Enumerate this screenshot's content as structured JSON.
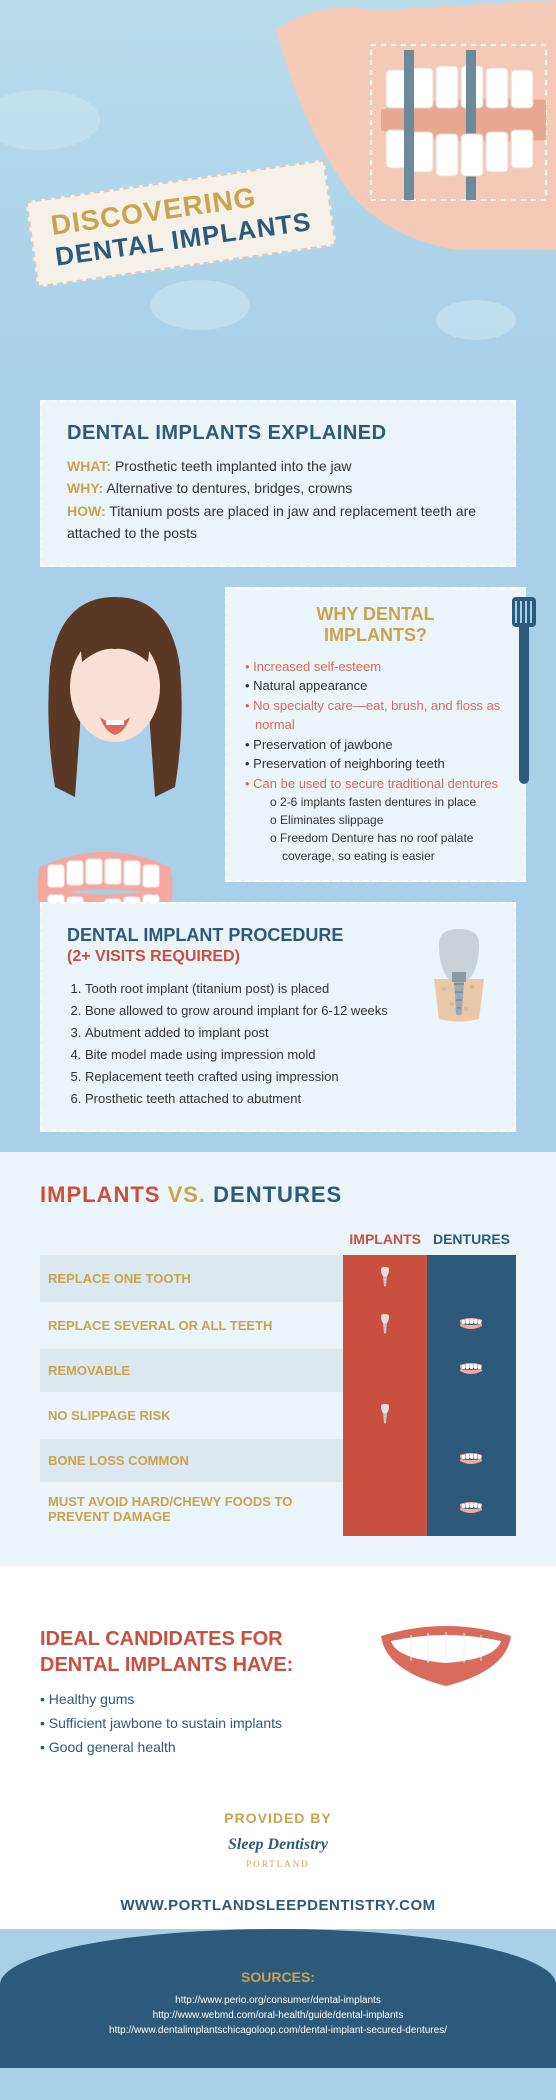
{
  "colors": {
    "gold": "#c9a34e",
    "navy": "#2d5a7a",
    "coral": "#d86b5c",
    "red": "#c94f3e",
    "skin": "#f5c9b8",
    "paleBlue": "#ebf4f9",
    "skyBlue": "#a8d0e8",
    "darkText": "#333"
  },
  "hero": {
    "title1": "DISCOVERING",
    "title2": "DENTAL IMPLANTS"
  },
  "explained": {
    "title": "DENTAL IMPLANTS EXPLAINED",
    "rows": [
      {
        "label": "WHAT:",
        "text": "Prosthetic teeth implanted into the jaw"
      },
      {
        "label": "WHY:",
        "text": "Alternative to dentures, bridges, crowns"
      },
      {
        "label": "HOW:",
        "text": "Titanium posts are placed in jaw and replacement teeth are attached to the posts"
      }
    ]
  },
  "why": {
    "title1": "WHY DENTAL",
    "title2": "IMPLANTS?",
    "items": [
      {
        "text": "Increased self-esteem",
        "color": "#d86b5c"
      },
      {
        "text": "Natural appearance",
        "color": "#333"
      },
      {
        "text": "No specialty care—eat, brush, and floss as normal",
        "color": "#d86b5c"
      },
      {
        "text": "Preservation of jawbone",
        "color": "#333"
      },
      {
        "text": "Preservation of neighboring teeth",
        "color": "#333"
      },
      {
        "text": "Can be used to secure traditional dentures",
        "color": "#d86b5c",
        "sub": [
          "2-6 implants fasten dentures in place",
          "Eliminates slippage",
          "Freedom Denture has no roof palate coverage, so eating is easier"
        ]
      }
    ]
  },
  "procedure": {
    "title": "DENTAL IMPLANT PROCEDURE",
    "subtitle": "(2+ VISITS REQUIRED)",
    "steps": [
      "Tooth root implant (titanium post) is placed",
      "Bone allowed to grow around implant for 6-12 weeks",
      "Abutment added to implant post",
      "Bite model made using impression mold",
      "Replacement teeth crafted using impression",
      "Prosthetic teeth attached to abutment"
    ]
  },
  "comparison": {
    "title1": "IMPLANTS",
    "titleVs": "VS.",
    "title2": "DENTURES",
    "col1": "IMPLANTS",
    "col2": "DENTURES",
    "rows": [
      {
        "label": "REPLACE ONE TOOTH",
        "implant": true,
        "denture": false
      },
      {
        "label": "REPLACE SEVERAL OR ALL TEETH",
        "implant": true,
        "denture": true
      },
      {
        "label": "REMOVABLE",
        "implant": false,
        "denture": true
      },
      {
        "label": "NO SLIPPAGE RISK",
        "implant": true,
        "denture": false
      },
      {
        "label": "BONE LOSS COMMON",
        "implant": false,
        "denture": true
      },
      {
        "label": "MUST AVOID HARD/CHEWY FOODS TO PREVENT DAMAGE",
        "implant": false,
        "denture": true
      }
    ]
  },
  "candidates": {
    "title1": "IDEAL CANDIDATES FOR",
    "title2": "DENTAL IMPLANTS HAVE:",
    "items": [
      "Healthy gums",
      "Sufficient jawbone to sustain implants",
      "Good general health"
    ]
  },
  "provided": {
    "label": "PROVIDED BY",
    "logoLine1": "Sleep Dentistry",
    "logoLine2": "PORTLAND"
  },
  "website": "WWW.PORTLANDSLEEPDENTISTRY.COM",
  "sources": {
    "title": "SOURCES:",
    "items": [
      "http://www.perio.org/consumer/dental-implants",
      "http://www.webmd.com/oral-health/guide/dental-implants",
      "http://www.dentalimplantschicagoloop.com/dental-implant-secured-dentures/"
    ]
  }
}
